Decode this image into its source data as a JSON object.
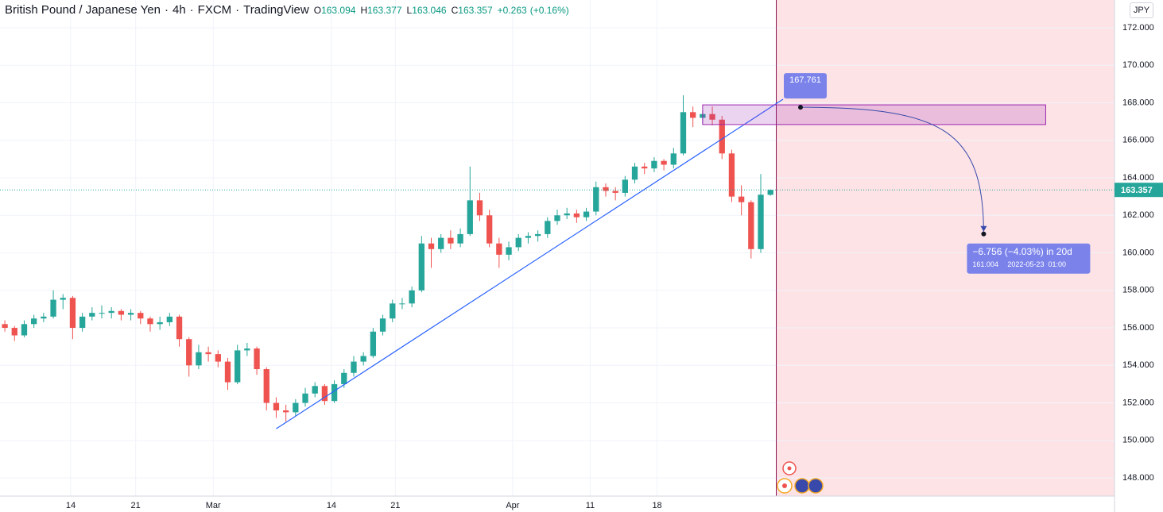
{
  "header": {
    "symbol": "British Pound / Japanese Yen",
    "interval": "4h",
    "broker": "FXCM",
    "source": "TradingView",
    "open_label": "O",
    "open": 163.094,
    "high_label": "H",
    "high": 163.377,
    "low_label": "L",
    "low": 163.046,
    "close_label": "C",
    "close": 163.357,
    "change": {
      "value": 0.263,
      "label": "+0.263"
    },
    "change_pct": {
      "value": 0.16,
      "label": "(+0.16%)"
    },
    "currency": "JPY"
  },
  "chart_data": {
    "type": "candlestick",
    "up_color": "#26a69a",
    "down_color": "#ef5350",
    "xlim": [
      0,
      115
    ],
    "ylim": [
      147.03,
      173.48
    ],
    "xticks": [
      {
        "value": 7.3,
        "label": "14"
      },
      {
        "value": 14.0,
        "label": "21"
      },
      {
        "value": 22.0,
        "label": "Mar"
      },
      {
        "value": 34.2,
        "label": "14"
      },
      {
        "value": 40.8,
        "label": "21"
      },
      {
        "value": 52.9,
        "label": "Apr"
      },
      {
        "value": 60.9,
        "label": "11"
      },
      {
        "value": 67.8,
        "label": "18"
      }
    ],
    "yticks": [
      {
        "value": 148,
        "label": "148.000"
      },
      {
        "value": 150,
        "label": "150.000"
      },
      {
        "value": 152,
        "label": "152.000"
      },
      {
        "value": 154,
        "label": "154.000"
      },
      {
        "value": 156,
        "label": "156.000"
      },
      {
        "value": 158,
        "label": "158.000"
      },
      {
        "value": 160,
        "label": "160.000"
      },
      {
        "value": 162,
        "label": "162.000"
      },
      {
        "value": 164,
        "label": "164.000"
      },
      {
        "value": 166,
        "label": "166.000"
      },
      {
        "value": 168,
        "label": "168.000"
      },
      {
        "value": 170,
        "label": "170.000"
      },
      {
        "value": 172,
        "label": "172.000"
      }
    ],
    "grid": true,
    "ohlc": [
      [
        156.2,
        156.4,
        155.8,
        156.0
      ],
      [
        156.0,
        156.1,
        155.3,
        155.6
      ],
      [
        155.6,
        156.4,
        155.5,
        156.2
      ],
      [
        156.2,
        156.7,
        156.0,
        156.5
      ],
      [
        156.5,
        156.8,
        156.3,
        156.6
      ],
      [
        156.6,
        158.0,
        156.5,
        157.5
      ],
      [
        157.5,
        157.8,
        157.0,
        157.6
      ],
      [
        157.6,
        157.7,
        155.4,
        156.0
      ],
      [
        156.0,
        156.8,
        155.8,
        156.6
      ],
      [
        156.6,
        157.1,
        156.4,
        156.8
      ],
      [
        156.8,
        157.2,
        156.5,
        156.8
      ],
      [
        156.8,
        157.1,
        156.5,
        156.9
      ],
      [
        156.9,
        157.0,
        156.4,
        156.7
      ],
      [
        156.7,
        157.0,
        156.4,
        156.8
      ],
      [
        156.8,
        156.9,
        156.2,
        156.5
      ],
      [
        156.5,
        156.6,
        155.8,
        156.2
      ],
      [
        156.2,
        156.6,
        155.9,
        156.3
      ],
      [
        156.3,
        156.8,
        156.1,
        156.6
      ],
      [
        156.6,
        156.7,
        155.0,
        155.4
      ],
      [
        155.4,
        155.5,
        153.4,
        154.0
      ],
      [
        154.0,
        155.1,
        153.8,
        154.7
      ],
      [
        154.7,
        155.0,
        154.2,
        154.6
      ],
      [
        154.6,
        154.8,
        153.9,
        154.2
      ],
      [
        154.2,
        154.4,
        152.7,
        153.1
      ],
      [
        153.1,
        155.1,
        153.0,
        154.8
      ],
      [
        154.8,
        155.2,
        154.5,
        154.9
      ],
      [
        154.9,
        155.0,
        153.5,
        153.8
      ],
      [
        153.8,
        153.9,
        151.6,
        152.0
      ],
      [
        152.0,
        152.3,
        151.2,
        151.6
      ],
      [
        151.6,
        151.9,
        151.0,
        151.5
      ],
      [
        151.5,
        152.2,
        151.3,
        152.0
      ],
      [
        152.0,
        152.8,
        151.8,
        152.5
      ],
      [
        152.5,
        153.1,
        152.3,
        152.9
      ],
      [
        152.9,
        153.0,
        151.9,
        152.1
      ],
      [
        152.1,
        153.2,
        152.0,
        153.0
      ],
      [
        153.0,
        153.8,
        152.8,
        153.6
      ],
      [
        153.6,
        154.5,
        153.4,
        154.2
      ],
      [
        154.2,
        154.7,
        154.0,
        154.5
      ],
      [
        154.5,
        156.0,
        154.4,
        155.8
      ],
      [
        155.8,
        156.7,
        155.6,
        156.5
      ],
      [
        156.5,
        157.5,
        156.3,
        157.3
      ],
      [
        157.3,
        157.6,
        157.0,
        157.3
      ],
      [
        157.3,
        158.2,
        157.1,
        158.0
      ],
      [
        158.0,
        160.9,
        157.9,
        160.5
      ],
      [
        160.5,
        160.8,
        159.2,
        160.2
      ],
      [
        160.2,
        161.0,
        160.0,
        160.8
      ],
      [
        160.8,
        161.2,
        160.2,
        160.5
      ],
      [
        160.5,
        161.3,
        160.3,
        161.0
      ],
      [
        161.0,
        164.6,
        160.9,
        162.8
      ],
      [
        162.8,
        163.2,
        161.7,
        162.0
      ],
      [
        162.0,
        162.3,
        160.3,
        160.5
      ],
      [
        160.5,
        160.8,
        159.2,
        159.9
      ],
      [
        159.9,
        160.6,
        159.6,
        160.3
      ],
      [
        160.3,
        161.0,
        160.1,
        160.8
      ],
      [
        160.8,
        161.1,
        160.5,
        160.9
      ],
      [
        160.9,
        161.2,
        160.6,
        161.0
      ],
      [
        161.0,
        161.9,
        160.8,
        161.7
      ],
      [
        161.7,
        162.3,
        161.5,
        162.0
      ],
      [
        162.0,
        162.4,
        161.8,
        162.1
      ],
      [
        162.1,
        162.3,
        161.6,
        161.9
      ],
      [
        161.9,
        162.4,
        161.7,
        162.2
      ],
      [
        162.2,
        163.8,
        162.0,
        163.5
      ],
      [
        163.5,
        163.7,
        163.0,
        163.3
      ],
      [
        163.3,
        163.5,
        162.8,
        163.2
      ],
      [
        163.2,
        164.1,
        163.0,
        163.9
      ],
      [
        163.9,
        164.8,
        163.7,
        164.6
      ],
      [
        164.6,
        164.8,
        164.2,
        164.5
      ],
      [
        164.5,
        165.1,
        164.3,
        164.9
      ],
      [
        164.9,
        165.0,
        164.4,
        164.7
      ],
      [
        164.7,
        165.6,
        164.5,
        165.3
      ],
      [
        165.3,
        168.4,
        165.2,
        167.5
      ],
      [
        167.5,
        167.8,
        166.7,
        167.2
      ],
      [
        167.2,
        167.6,
        166.9,
        167.4
      ],
      [
        167.4,
        167.8,
        166.8,
        167.1
      ],
      [
        167.1,
        167.3,
        165.0,
        165.3
      ],
      [
        165.3,
        165.5,
        162.7,
        163.0
      ],
      [
        163.0,
        163.6,
        162.0,
        162.7
      ],
      [
        162.7,
        162.8,
        159.7,
        160.2
      ],
      [
        160.2,
        164.2,
        160.0,
        163.1
      ],
      [
        163.094,
        163.377,
        163.046,
        163.357
      ]
    ],
    "last_price": 163.357,
    "last_color": "#26a69a",
    "future_start": 80.1,
    "trendline": {
      "x": [
        28.5,
        80.8
      ],
      "y": [
        150.62,
        168.19
      ],
      "color": "#2962ff"
    },
    "zone": {
      "x": [
        72.5,
        107.9
      ],
      "y": [
        166.84,
        167.89
      ],
      "color": "#9c27b0"
    },
    "projection": {
      "start_x": 82.6,
      "start_y": 167.761,
      "end_x": 101.5,
      "end_y": 161.004,
      "change_label": "−6.756 (−4.03%) in 20d",
      "end_time": "2022-05-23  01:00",
      "color": "#7b83eb"
    }
  }
}
